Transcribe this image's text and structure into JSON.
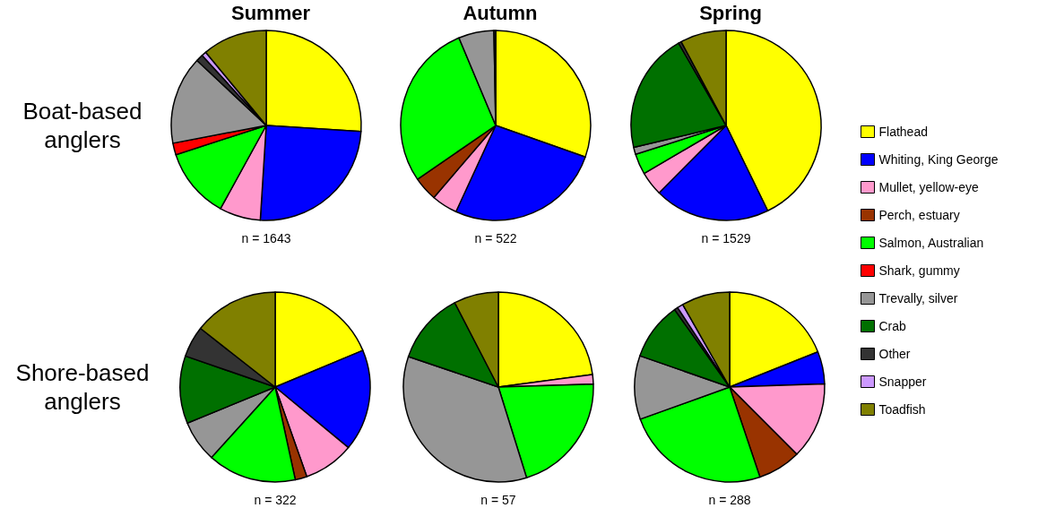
{
  "chart_data": [
    {
      "type": "pie",
      "title": "Summer",
      "ylabel": "Boat-based\nanglers",
      "annotations": [
        "n = 1643"
      ],
      "legend": "right",
      "categories": [
        "Flathead",
        "Whiting, King George",
        "Mullet, yellow-eye",
        "Perch, estuary",
        "Salmon, Australian",
        "Shark, gummy",
        "Trevally, silver",
        "Crab",
        "Other",
        "Snapper",
        "Toadfish"
      ],
      "colors": [
        "#ffff00",
        "#0000ff",
        "#ff99cc",
        "#993300",
        "#00ff00",
        "#ff0000",
        "#969696",
        "#007000",
        "#333333",
        "#cc99ff",
        "#808000"
      ],
      "values": [
        26,
        25,
        7,
        null,
        12,
        2,
        15,
        null,
        1.2,
        0.8,
        11
      ]
    },
    {
      "type": "pie",
      "title": "Autumn",
      "annotations": [
        "n = 522"
      ],
      "categories": [
        null,
        null,
        null,
        null,
        null,
        null,
        null,
        null,
        null,
        null,
        null
      ],
      "colors": [
        "#ffff00",
        "#0000ff",
        "#ff99cc",
        "#993300",
        "#00ff00",
        null,
        "#969696",
        null,
        "#333333",
        null,
        null
      ],
      "values": [
        30.3,
        26.4,
        4.4,
        4.1,
        28.2,
        null,
        6,
        null,
        0.3,
        null,
        null
      ]
    },
    {
      "type": "pie",
      "title": "Spring",
      "annotations": [
        "n = 1529"
      ],
      "categories": [
        null,
        null,
        null,
        null,
        null,
        null,
        null,
        null,
        null,
        null,
        null
      ],
      "colors": [
        "#ffff00",
        "#0000ff",
        "#ff99cc",
        null,
        "#00ff00",
        null,
        "#969696",
        "#007000",
        "#333333",
        null,
        "#808000"
      ],
      "values": [
        42.6,
        19.6,
        4.1,
        null,
        3.5,
        null,
        1.2,
        20.3,
        0.5,
        null,
        7.8
      ]
    },
    {
      "type": "pie",
      "ylabel": "Shore-based\nanglers",
      "annotations": [
        "n = 322"
      ],
      "categories": [
        null,
        null,
        null,
        null,
        null,
        null,
        null,
        null,
        null,
        null,
        null
      ],
      "colors": [
        "#ffff00",
        "#0000ff",
        "#ff99cc",
        "#993300",
        "#00ff00",
        null,
        "#969696",
        "#007000",
        "#333333",
        null,
        "#808000"
      ],
      "values": [
        18.7,
        17.3,
        8.6,
        2,
        15.1,
        null,
        7.1,
        11.5,
        5.3,
        null,
        14.4
      ]
    },
    {
      "type": "pie",
      "annotations": [
        "n = 57"
      ],
      "categories": [
        null,
        null,
        null,
        null,
        null,
        null,
        null,
        null,
        null,
        null,
        null
      ],
      "colors": [
        "#ffff00",
        null,
        "#ff99cc",
        null,
        "#00ff00",
        null,
        "#969696",
        "#007000",
        null,
        null,
        "#808000"
      ],
      "values": [
        22.9,
        null,
        1.6,
        null,
        20.7,
        null,
        35,
        12.2,
        null,
        null,
        7.6
      ]
    },
    {
      "type": "pie",
      "annotations": [
        "n = 288"
      ],
      "categories": [
        null,
        null,
        null,
        null,
        null,
        null,
        null,
        null,
        null,
        null,
        null
      ],
      "colors": [
        "#ffff00",
        "#0000ff",
        "#ff99cc",
        "#993300",
        "#00ff00",
        null,
        "#969696",
        "#007000",
        "#333333",
        "#cc99ff",
        "#808000"
      ],
      "values": [
        18.9,
        5.5,
        13,
        7.3,
        24.6,
        null,
        10.8,
        9.8,
        0.6,
        1,
        8.2
      ]
    }
  ]
}
